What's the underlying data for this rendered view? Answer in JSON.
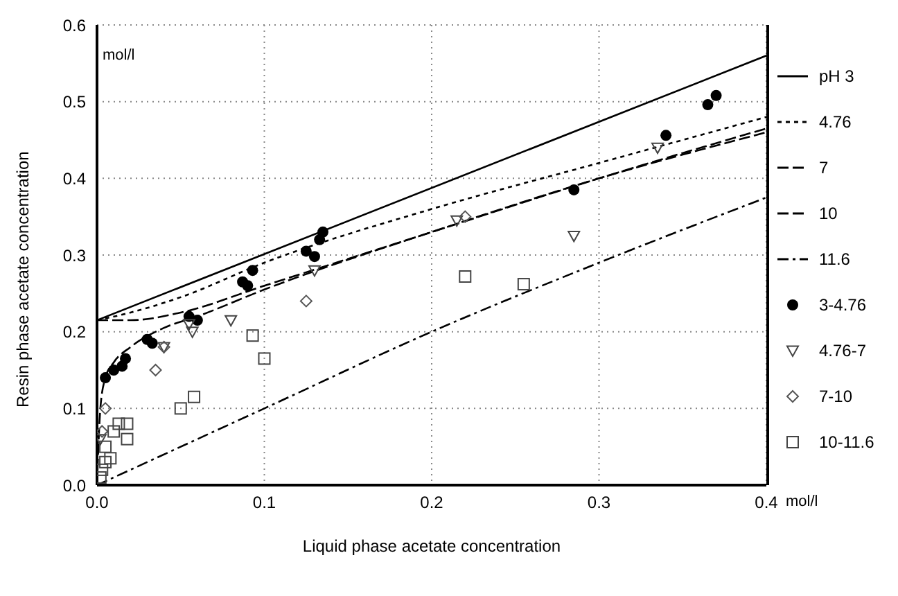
{
  "chart_data": {
    "type": "line",
    "xlabel": "Liquid phase acetate concentration",
    "ylabel": "Resin phase acetate concentration",
    "annotations": [
      "mol/l",
      "mol/l"
    ],
    "xlim": [
      0,
      0.4
    ],
    "xticks": [
      {
        "value": 0,
        "label": "0.0"
      },
      0.1,
      0.2,
      0.3,
      0.4
    ],
    "ylim": [
      0,
      0.6
    ],
    "yticks": [
      {
        "value": 0,
        "label": "0.0"
      },
      0.1,
      0.2,
      0.3,
      0.4,
      0.5,
      0.6
    ],
    "grid": true,
    "legend": "right",
    "series": [
      {
        "name": "pH 3",
        "color": "#000000",
        "line_style": "solid",
        "x": [
          0,
          0.4
        ],
        "values": [
          0.215,
          0.56
        ]
      },
      {
        "name": "4.76",
        "color": "#000000",
        "line_style": "dotted",
        "x": [
          0,
          0.02,
          0.05,
          0.1,
          0.2,
          0.3,
          0.4
        ],
        "values": [
          0.215,
          0.225,
          0.245,
          0.29,
          0.36,
          0.42,
          0.48
        ]
      },
      {
        "name": "7",
        "color": "#000000",
        "line_style": "dashed",
        "x": [
          0,
          0.02,
          0.05,
          0.1,
          0.2,
          0.3,
          0.4
        ],
        "values": [
          0.215,
          0.215,
          0.225,
          0.26,
          0.33,
          0.4,
          0.465
        ]
      },
      {
        "name": "10",
        "color": "#000000",
        "line_style": "dashed",
        "x": [
          0,
          0.002,
          0.005,
          0.01,
          0.02,
          0.04,
          0.06,
          0.1,
          0.2,
          0.3,
          0.4
        ],
        "values": [
          0,
          0.1,
          0.14,
          0.16,
          0.18,
          0.205,
          0.22,
          0.255,
          0.33,
          0.4,
          0.46
        ]
      },
      {
        "name": "11.6",
        "color": "#000000",
        "line_style": "dashdot",
        "x": [
          0,
          0.1,
          0.2,
          0.3,
          0.4
        ],
        "values": [
          0,
          0.1,
          0.2,
          0.29,
          0.375
        ]
      },
      {
        "name": "3-4.76",
        "type": "scatter",
        "color": "#000000",
        "marker": "circle",
        "x": [
          0.005,
          0.01,
          0.015,
          0.017,
          0.03,
          0.033,
          0.055,
          0.06,
          0.087,
          0.09,
          0.093,
          0.125,
          0.13,
          0.133,
          0.135,
          0.285,
          0.34,
          0.365,
          0.37
        ],
        "values": [
          0.14,
          0.15,
          0.155,
          0.165,
          0.19,
          0.185,
          0.22,
          0.215,
          0.265,
          0.26,
          0.28,
          0.305,
          0.298,
          0.32,
          0.33,
          0.385,
          0.456,
          0.496,
          0.508
        ]
      },
      {
        "name": "4.76-7",
        "type": "scatter",
        "color": "#444444",
        "marker": "triangle",
        "x": [
          0.002,
          0.04,
          0.055,
          0.057,
          0.08,
          0.13,
          0.215,
          0.285,
          0.335
        ],
        "values": [
          0.06,
          0.18,
          0.21,
          0.2,
          0.215,
          0.28,
          0.345,
          0.325,
          0.44
        ]
      },
      {
        "name": "7-10",
        "type": "scatter",
        "color": "#555555",
        "marker": "diamond",
        "x": [
          0.003,
          0.005,
          0.035,
          0.04,
          0.125,
          0.22
        ],
        "values": [
          0.07,
          0.1,
          0.15,
          0.18,
          0.24,
          0.35
        ]
      },
      {
        "name": "10-11.6",
        "type": "scatter",
        "color": "#444444",
        "marker": "square",
        "x": [
          0.002,
          0.003,
          0.005,
          0.008,
          0.005,
          0.01,
          0.013,
          0.018,
          0.018,
          0.05,
          0.058,
          0.093,
          0.1,
          0.22,
          0.255
        ],
        "values": [
          0.01,
          0.02,
          0.03,
          0.035,
          0.05,
          0.07,
          0.08,
          0.08,
          0.06,
          0.1,
          0.115,
          0.195,
          0.165,
          0.272,
          0.262
        ]
      }
    ]
  }
}
